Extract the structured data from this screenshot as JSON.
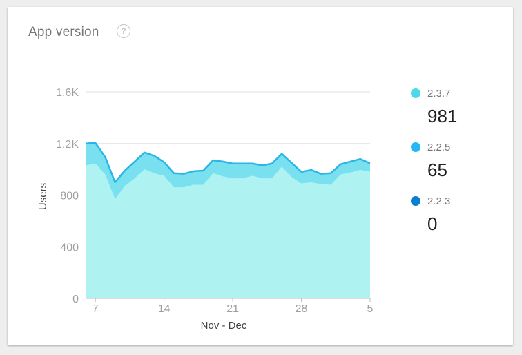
{
  "card": {
    "title": "App version",
    "help_icon": "?"
  },
  "legend": [
    {
      "name": "2.3.7",
      "value": "981",
      "color": "#4dd9e8"
    },
    {
      "name": "2.2.5",
      "value": "65",
      "color": "#29b6f6"
    },
    {
      "name": "2.2.3",
      "value": "0",
      "color": "#0b7fcf"
    }
  ],
  "chart_data": {
    "type": "area",
    "stacked": true,
    "xlabel": "Nov - Dec",
    "ylabel": "Users",
    "ylim": [
      0,
      1600
    ],
    "yticks": [
      "0",
      "400",
      "800",
      "1.2K",
      "1.6K"
    ],
    "ytick_values": [
      0,
      400,
      800,
      1200,
      1600
    ],
    "x_start_day": 6,
    "x_ticks": [
      {
        "label": "7",
        "index": 1
      },
      {
        "label": "14",
        "index": 8
      },
      {
        "label": "21",
        "index": 15
      },
      {
        "label": "28",
        "index": 22
      },
      {
        "label": "5",
        "index": 29
      }
    ],
    "grid": true,
    "series": [
      {
        "name": "2.3.7",
        "color": "#aef2f2",
        "values": [
          1030,
          1045,
          960,
          770,
          870,
          930,
          1000,
          970,
          950,
          860,
          860,
          880,
          880,
          970,
          945,
          930,
          930,
          950,
          930,
          930,
          1020,
          940,
          890,
          900,
          885,
          880,
          960,
          975,
          995,
          981
        ]
      },
      {
        "name": "2.2.5",
        "color": "#78e0ee",
        "values": [
          170,
          160,
          135,
          130,
          120,
          130,
          130,
          135,
          105,
          110,
          105,
          105,
          110,
          100,
          115,
          115,
          115,
          95,
          100,
          115,
          100,
          110,
          90,
          95,
          80,
          90,
          80,
          85,
          85,
          65
        ]
      },
      {
        "name": "2.2.3",
        "color": "#29b6f6",
        "values": [
          0,
          0,
          0,
          0,
          0,
          0,
          0,
          0,
          0,
          0,
          0,
          0,
          0,
          0,
          0,
          0,
          0,
          0,
          0,
          0,
          0,
          0,
          0,
          0,
          0,
          0,
          0,
          0,
          0,
          0
        ]
      }
    ]
  }
}
